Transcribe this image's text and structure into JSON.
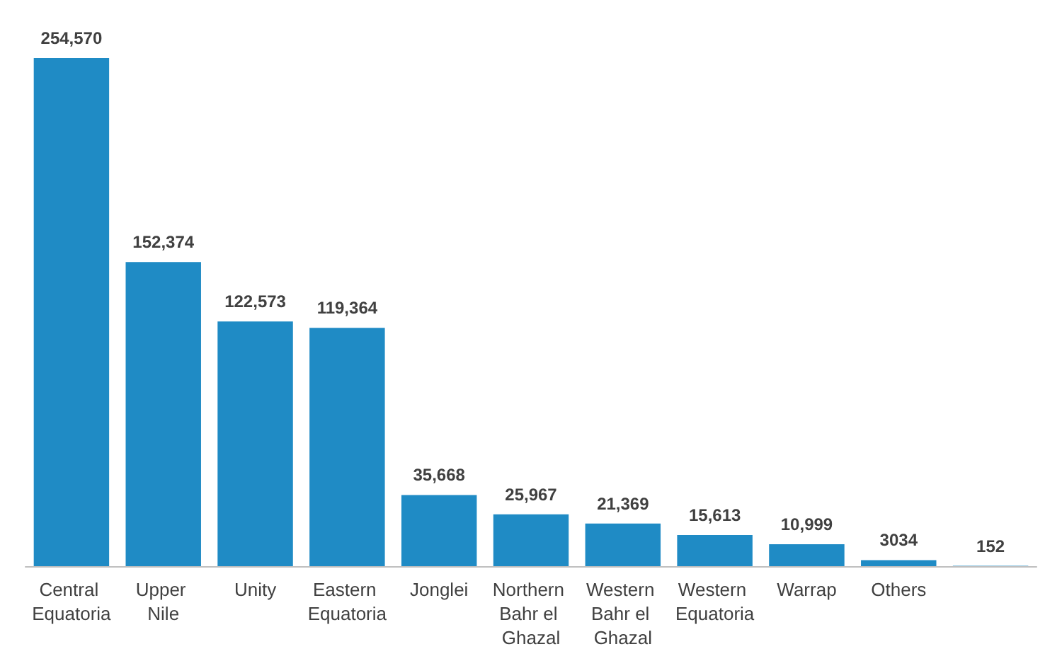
{
  "chart_data": {
    "type": "bar",
    "categories": [
      "Central Equatoria",
      "Upper Nile",
      "Unity",
      "Eastern Equatoria",
      "Jonglei",
      "Northern Bahr el Ghazal",
      "Western Bahr el Ghazal",
      "Western Equatoria",
      "Warrap",
      "Others",
      null
    ],
    "values": [
      254570,
      152374,
      122573,
      119364,
      35668,
      25967,
      21369,
      15613,
      10999,
      3034,
      152
    ],
    "value_labels": [
      "254,570",
      "152,374",
      "122,573",
      "119,364",
      "35,668",
      "25,967",
      "21,369",
      "15,613",
      "10,999",
      "3034",
      "152"
    ],
    "color": "#1f8bc5"
  }
}
